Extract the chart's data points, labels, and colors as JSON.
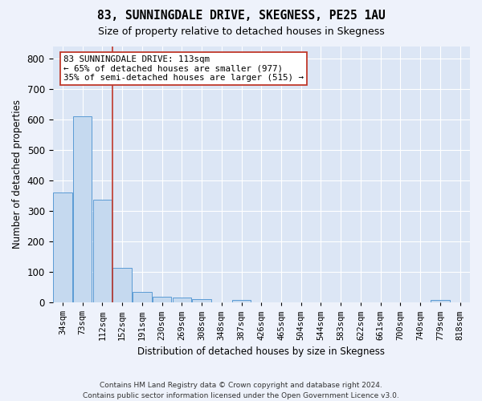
{
  "title": "83, SUNNINGDALE DRIVE, SKEGNESS, PE25 1AU",
  "subtitle": "Size of property relative to detached houses in Skegness",
  "xlabel": "Distribution of detached houses by size in Skegness",
  "ylabel": "Number of detached properties",
  "footer_line1": "Contains HM Land Registry data © Crown copyright and database right 2024.",
  "footer_line2": "Contains public sector information licensed under the Open Government Licence v3.0.",
  "bar_labels": [
    "34sqm",
    "73sqm",
    "112sqm",
    "152sqm",
    "191sqm",
    "230sqm",
    "269sqm",
    "308sqm",
    "348sqm",
    "387sqm",
    "426sqm",
    "465sqm",
    "504sqm",
    "544sqm",
    "583sqm",
    "622sqm",
    "661sqm",
    "700sqm",
    "740sqm",
    "779sqm",
    "818sqm"
  ],
  "bar_values": [
    360,
    611,
    338,
    114,
    35,
    20,
    15,
    10,
    0,
    8,
    0,
    0,
    0,
    0,
    0,
    0,
    0,
    0,
    0,
    8,
    0
  ],
  "bar_color": "#c5d9ef",
  "bar_edge_color": "#5b9bd5",
  "ylim": [
    0,
    840
  ],
  "yticks": [
    0,
    100,
    200,
    300,
    400,
    500,
    600,
    700,
    800
  ],
  "property_line_bin": 2.5,
  "annotation_text_line1": "83 SUNNINGDALE DRIVE: 113sqm",
  "annotation_text_line2": "← 65% of detached houses are smaller (977)",
  "annotation_text_line3": "35% of semi-detached houses are larger (515) →",
  "vline_color": "#c0392b",
  "background_color": "#eef2fb",
  "grid_color": "#ffffff",
  "axis_bg_color": "#dce6f5"
}
